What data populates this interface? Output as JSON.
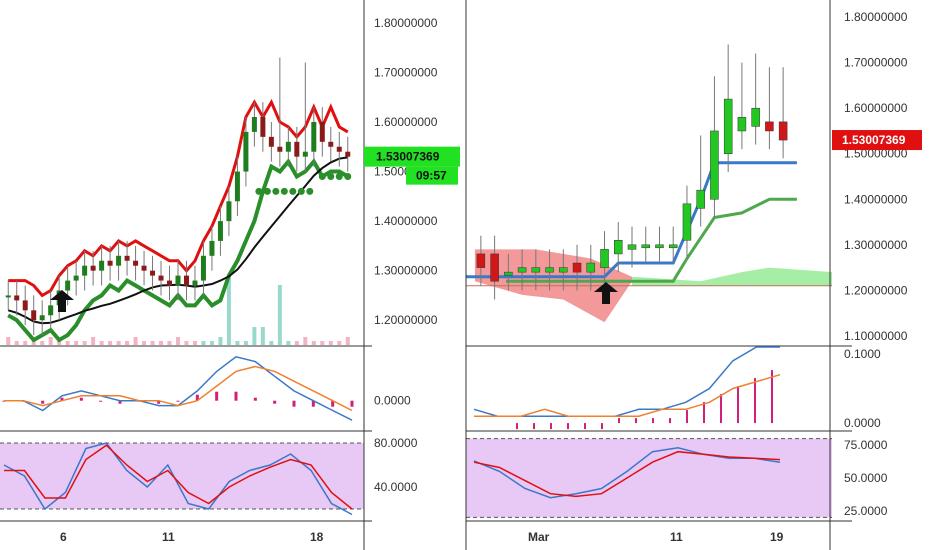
{
  "colors": {
    "up": "#1e7d1e",
    "up_light": "#22c722",
    "down": "#d01818",
    "green_line": "#2a8f2a",
    "red_line": "#e01010",
    "black_line": "#111111",
    "blue": "#3a78c9",
    "orange": "#f08030",
    "magenta": "#d0207a",
    "stoch_fill": "#e8c8f5",
    "cloud_red": "#f08080",
    "cloud_green": "#90e890",
    "badge_green": "#22e022",
    "badge_red": "#e01010",
    "grid_sep": "#333333"
  },
  "chart_data": [
    {
      "panel": "left-price",
      "type": "candlestick",
      "x_tick_labels": [
        "6",
        "11",
        "18"
      ],
      "y_ticks": [
        "1.80000000",
        "1.70000000",
        "1.60000000",
        "1.50000000",
        "1.40000000",
        "1.30000000",
        "1.20000000"
      ],
      "ylim": [
        1.15,
        1.83
      ],
      "last_price_label": "1.53007369",
      "countdown_label": "09:57",
      "candles_close": [
        1.25,
        1.24,
        1.22,
        1.2,
        1.21,
        1.23,
        1.26,
        1.28,
        1.29,
        1.31,
        1.3,
        1.32,
        1.31,
        1.33,
        1.32,
        1.31,
        1.3,
        1.29,
        1.28,
        1.27,
        1.29,
        1.27,
        1.28,
        1.33,
        1.36,
        1.4,
        1.44,
        1.5,
        1.58,
        1.61,
        1.57,
        1.55,
        1.54,
        1.56,
        1.53,
        1.54,
        1.6,
        1.56,
        1.55,
        1.54,
        1.53
      ]
    },
    {
      "panel": "left-macd",
      "type": "line",
      "y_ticks": [
        "0.0000"
      ],
      "series": [
        {
          "values": [
            0.0,
            0.0,
            -0.02,
            0.01,
            0.02,
            0.01,
            0.0,
            0.0,
            -0.01,
            -0.01,
            0.02,
            0.06,
            0.09,
            0.08,
            0.05,
            0.02,
            0.0,
            -0.02,
            -0.04
          ]
        },
        {
          "values": [
            0.0,
            0.0,
            -0.01,
            0.0,
            0.01,
            0.01,
            0.01,
            0.0,
            0.0,
            -0.01,
            0.0,
            0.03,
            0.06,
            0.07,
            0.06,
            0.04,
            0.02,
            0.0,
            -0.02
          ]
        }
      ]
    },
    {
      "panel": "left-stochastic",
      "type": "line",
      "y_ticks": [
        "80.0000",
        "40.0000"
      ],
      "ylim": [
        10,
        90
      ],
      "series": [
        {
          "values": [
            60,
            50,
            20,
            35,
            75,
            80,
            55,
            40,
            60,
            25,
            20,
            45,
            55,
            60,
            70,
            55,
            25,
            15
          ]
        },
        {
          "values": [
            55,
            55,
            30,
            30,
            65,
            78,
            60,
            45,
            55,
            35,
            25,
            40,
            50,
            58,
            65,
            60,
            35,
            20
          ]
        }
      ]
    },
    {
      "panel": "right-price",
      "type": "candlestick",
      "x_tick_labels": [
        "Mar",
        "11",
        "19"
      ],
      "y_ticks": [
        "1.80000000",
        "1.70000000",
        "1.60000000",
        "1.50000000",
        "1.40000000",
        "1.30000000",
        "1.20000000",
        "1.10000000"
      ],
      "ylim": [
        1.08,
        1.82
      ],
      "last_price_label": "1.53007369",
      "candles": [
        {
          "o": 1.28,
          "c": 1.25
        },
        {
          "o": 1.28,
          "c": 1.22
        },
        {
          "o": 1.24,
          "c": 1.24
        },
        {
          "o": 1.24,
          "c": 1.25
        },
        {
          "o": 1.24,
          "c": 1.25
        },
        {
          "o": 1.24,
          "c": 1.25
        },
        {
          "o": 1.24,
          "c": 1.25
        },
        {
          "o": 1.26,
          "c": 1.24
        },
        {
          "o": 1.24,
          "c": 1.26
        },
        {
          "o": 1.25,
          "c": 1.29
        },
        {
          "o": 1.28,
          "c": 1.31
        },
        {
          "o": 1.29,
          "c": 1.3
        },
        {
          "o": 1.3,
          "c": 1.3
        },
        {
          "o": 1.3,
          "c": 1.3
        },
        {
          "o": 1.3,
          "c": 1.3
        },
        {
          "o": 1.31,
          "c": 1.39
        },
        {
          "o": 1.38,
          "c": 1.42
        },
        {
          "o": 1.4,
          "c": 1.55
        },
        {
          "o": 1.5,
          "c": 1.62
        },
        {
          "o": 1.55,
          "c": 1.58
        },
        {
          "o": 1.56,
          "c": 1.6
        },
        {
          "o": 1.57,
          "c": 1.55
        },
        {
          "o": 1.57,
          "c": 1.53
        }
      ]
    },
    {
      "panel": "right-macd",
      "type": "line",
      "y_ticks": [
        "0.1000",
        "0.0000"
      ],
      "ylim": [
        -0.01,
        0.11
      ],
      "series": [
        {
          "values": [
            0.02,
            0.01,
            0.01,
            0.01,
            0.01,
            0.01,
            0.01,
            0.02,
            0.02,
            0.03,
            0.05,
            0.09,
            0.11,
            0.11
          ]
        },
        {
          "values": [
            0.01,
            0.01,
            0.01,
            0.02,
            0.01,
            0.01,
            0.01,
            0.01,
            0.02,
            0.02,
            0.03,
            0.05,
            0.06,
            0.07
          ]
        }
      ]
    },
    {
      "panel": "right-stochastic",
      "type": "line",
      "y_ticks": [
        "75.0000",
        "50.0000",
        "25.0000"
      ],
      "ylim": [
        18,
        85
      ],
      "series": [
        {
          "values": [
            63,
            55,
            42,
            35,
            38,
            42,
            55,
            70,
            73,
            68,
            65,
            65,
            62
          ]
        },
        {
          "values": [
            62,
            58,
            48,
            38,
            36,
            38,
            50,
            62,
            70,
            68,
            66,
            65,
            64
          ]
        }
      ]
    }
  ]
}
